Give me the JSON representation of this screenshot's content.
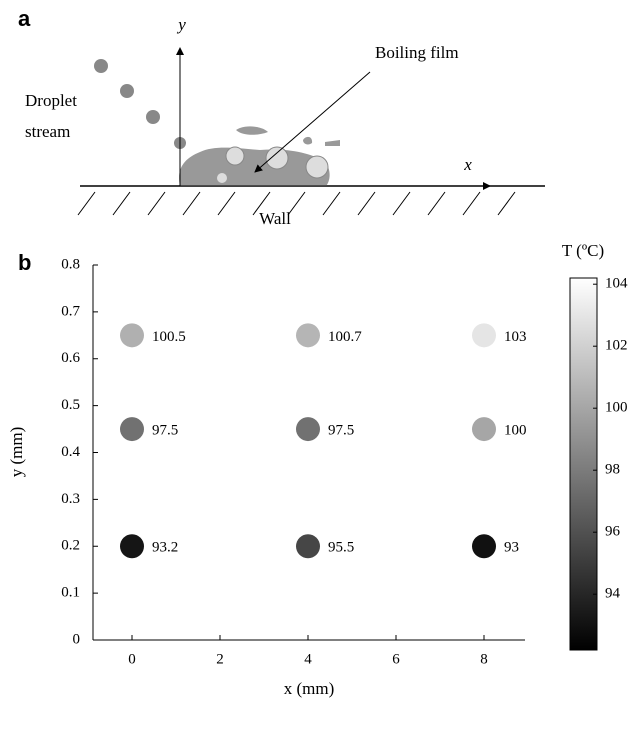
{
  "diagram": {
    "label": "a",
    "y_axis": "y",
    "x_axis": "x",
    "droplet_lines": [
      "Droplet",
      "stream"
    ],
    "film": "Boiling film",
    "wall": "Wall"
  },
  "chart_data": {
    "type": "scatter",
    "label": "b",
    "x_label": "x (mm)",
    "y_label": "y (mm)",
    "x": [
      0,
      4,
      8,
      0,
      4,
      8,
      0,
      4,
      8
    ],
    "y": [
      0.65,
      0.65,
      0.65,
      0.45,
      0.45,
      0.45,
      0.2,
      0.2,
      0.2
    ],
    "values": [
      100.5,
      100.7,
      103,
      97.5,
      97.5,
      100,
      93.2,
      95.5,
      93
    ],
    "xlim": [
      -1,
      9
    ],
    "xticks": [
      0,
      2,
      4,
      6,
      8
    ],
    "ylim": [
      0,
      0.8
    ],
    "yticks": [
      0,
      0.1,
      0.2,
      0.3,
      0.4,
      0.5,
      0.6,
      0.7,
      0.8
    ],
    "colorbar": {
      "title": "T (ºC)",
      "clim": [
        92.2,
        104.2
      ],
      "ticks": [
        94,
        96,
        98,
        100,
        102,
        104
      ]
    }
  }
}
